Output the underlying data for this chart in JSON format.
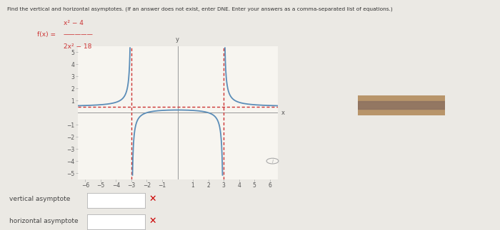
{
  "title_text": "Find the vertical and horizontal asymptotes. (If an answer does not exist, enter DNE. Enter your answers as a comma-separated list of equations.)",
  "func_label": "f(x) =",
  "func_numerator": "x² − 4",
  "func_denominator": "2x² − 18",
  "xlim": [
    -6.5,
    6.5
  ],
  "ylim": [
    -5.5,
    5.5
  ],
  "xticks": [
    -6,
    -5,
    -4,
    -3,
    -2,
    -1,
    1,
    2,
    3,
    4,
    5,
    6
  ],
  "yticks": [
    -5,
    -4,
    -3,
    -2,
    -1,
    1,
    2,
    3,
    4,
    5
  ],
  "vertical_asymptotes": [
    -3,
    3
  ],
  "horizontal_asymptote": 0.5,
  "curve_color": "#5b8db8",
  "asymptote_color": "#cc3333",
  "bg_color": "#ebe9e4",
  "plot_bg_color": "#f7f5f0",
  "label_va": "vertical asymptote",
  "label_ha": "horizontal asymptote",
  "xlabel": "x",
  "ylabel": "y",
  "blur_rect_color": "#b8956a",
  "blur_rect2_color": "#8a7060"
}
